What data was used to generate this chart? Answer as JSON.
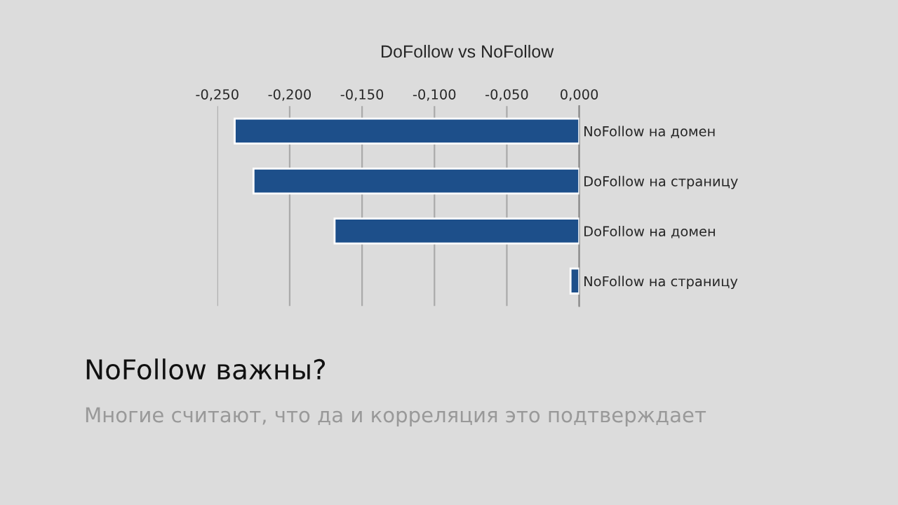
{
  "chart_data": {
    "type": "bar",
    "orientation": "horizontal",
    "title": "DoFollow vs NoFollow",
    "categories": [
      "NoFollow на домен",
      "DoFollow на страницу",
      "DoFollow на домен",
      "NoFollow на страницу"
    ],
    "values": [
      -0.238,
      -0.225,
      -0.169,
      -0.006
    ],
    "color": "#1d4f8a",
    "xlim": [
      -0.25,
      0.0
    ],
    "xticks": [
      {
        "value": -0.25,
        "label": "-0,250"
      },
      {
        "value": -0.2,
        "label": "-0,200"
      },
      {
        "value": -0.15,
        "label": "-0,150"
      },
      {
        "value": -0.1,
        "label": "-0,100"
      },
      {
        "value": -0.05,
        "label": "-0,050"
      },
      {
        "value": 0.0,
        "label": "0,000"
      }
    ],
    "grid": "x",
    "annotations": [
      "NoFollow важны?",
      "Многие считают, что да и корреляция это подтверждает"
    ]
  }
}
